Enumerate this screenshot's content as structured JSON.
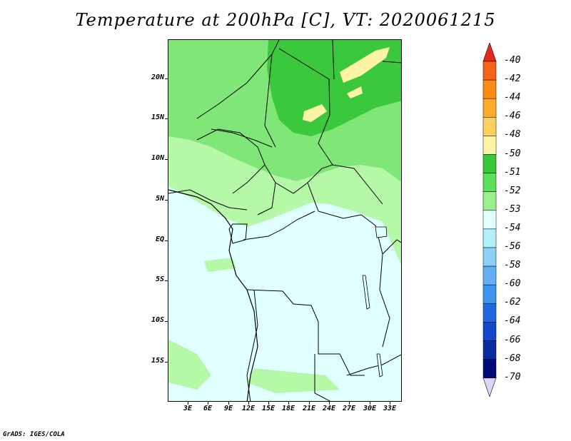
{
  "title": "Temperature at 200hPa [C], VT: 2020061215",
  "footer": "GrADS: IGES/COLA",
  "y_axis": {
    "labels": [
      "20N",
      "15N",
      "10N",
      "5N",
      "EQ",
      "5S",
      "10S",
      "15S"
    ]
  },
  "x_axis": {
    "labels": [
      "3E",
      "6E",
      "9E",
      "12E",
      "15E",
      "18E",
      "21E",
      "24E",
      "27E",
      "30E",
      "33E"
    ]
  },
  "colorbar": {
    "labels": [
      "-40",
      "-42",
      "-44",
      "-46",
      "-48",
      "-50",
      "-51",
      "-52",
      "-53",
      "-54",
      "-56",
      "-58",
      "-60",
      "-62",
      "-64",
      "-66",
      "-68",
      "-70"
    ],
    "colors": [
      "#f03020",
      "#f46418",
      "#fa8c10",
      "#fcac28",
      "#fcd060",
      "#fef4a8",
      "#38c838",
      "#5ae05a",
      "#9af08c",
      "#e0ffff",
      "#b4f0fc",
      "#8cd0f8",
      "#64b0f4",
      "#3c94ec",
      "#2068dc",
      "#1448c8",
      "#0a2ca0",
      "#000a78"
    ],
    "top_arrow_color": "#e62a1a",
    "bottom_arrow_color": "#dcd4fa"
  },
  "map_colors": {
    "ocean_band": "#e0ffff",
    "light_green": "#b4f8a8",
    "mid_green": "#80e678",
    "dark_green": "#3cc83c",
    "yellow": "#fef4a8",
    "border": "#000000"
  }
}
